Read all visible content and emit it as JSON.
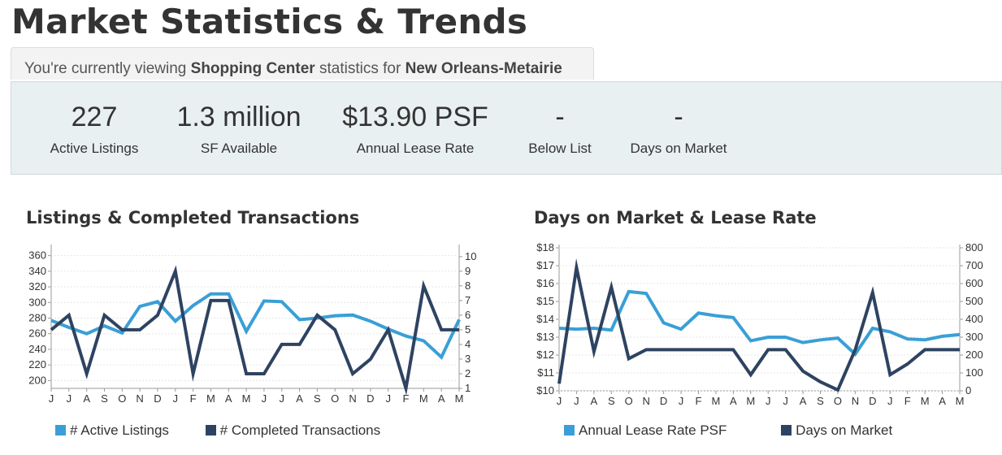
{
  "page": {
    "title": "Market Statistics & Trends",
    "viewing": {
      "prefix": "You're currently viewing ",
      "property_type": "Shopping Center",
      "middle": " statistics for ",
      "location": "New Orleans-Metairie"
    }
  },
  "stats": [
    {
      "value": "227",
      "label": "Active Listings"
    },
    {
      "value": "1.3 million",
      "label": "SF Available"
    },
    {
      "value": "$13.90 PSF",
      "label": "Annual Lease Rate"
    },
    {
      "value": "-",
      "label": "Below List"
    },
    {
      "value": "-",
      "label": "Days on Market"
    }
  ],
  "chart_data": [
    {
      "type": "line",
      "title": "Listings & Completed Transactions",
      "categories": [
        "J",
        "J",
        "A",
        "S",
        "O",
        "N",
        "D",
        "J",
        "F",
        "M",
        "A",
        "M",
        "J",
        "J",
        "A",
        "S",
        "O",
        "N",
        "D",
        "J",
        "F",
        "M",
        "A",
        "M"
      ],
      "left_axis": {
        "ticks": [
          "200",
          "220",
          "240",
          "260",
          "280",
          "300",
          "320",
          "340",
          "360"
        ],
        "range": [
          190,
          370
        ]
      },
      "right_axis": {
        "ticks": [
          "1",
          "2",
          "3",
          "4",
          "5",
          "6",
          "7",
          "8",
          "9",
          "10"
        ],
        "range": [
          1,
          10.6
        ]
      },
      "grid": true,
      "legend_position": "bottom",
      "series": [
        {
          "name": "# Active Listings",
          "axis": "left",
          "color": "#3a9fd6",
          "values": [
            277,
            268,
            260,
            270,
            261,
            295,
            301,
            276,
            296,
            311,
            311,
            263,
            302,
            301,
            278,
            280,
            283,
            284,
            276,
            266,
            257,
            251,
            230,
            278
          ]
        },
        {
          "name": "# Completed Transactions",
          "axis": "right",
          "color": "#2e4361",
          "values": [
            5,
            6,
            2,
            6,
            5,
            5,
            6,
            9,
            2,
            7,
            7,
            2,
            2,
            4,
            4,
            6,
            5,
            2,
            3,
            5,
            1,
            8,
            5,
            5
          ]
        }
      ]
    },
    {
      "type": "line",
      "title": "Days on Market & Lease Rate",
      "categories": [
        "J",
        "J",
        "A",
        "S",
        "O",
        "N",
        "D",
        "J",
        "F",
        "M",
        "A",
        "M",
        "J",
        "J",
        "A",
        "S",
        "O",
        "N",
        "D",
        "J",
        "F",
        "M",
        "A",
        "M"
      ],
      "left_axis": {
        "ticks": [
          "$10",
          "$11",
          "$12",
          "$13",
          "$14",
          "$15",
          "$16",
          "$17",
          "$18"
        ],
        "range": [
          10,
          18
        ]
      },
      "right_axis": {
        "ticks": [
          "0",
          "100",
          "200",
          "300",
          "400",
          "500",
          "600",
          "700",
          "800"
        ],
        "range": [
          0,
          800
        ]
      },
      "grid": true,
      "legend_position": "bottom",
      "series": [
        {
          "name": "Annual Lease Rate PSF",
          "axis": "left",
          "color": "#3a9fd6",
          "values": [
            13.5,
            13.45,
            13.5,
            13.4,
            15.55,
            15.45,
            13.8,
            13.45,
            14.35,
            14.2,
            14.1,
            12.8,
            13.0,
            13.0,
            12.7,
            12.85,
            12.95,
            12.05,
            13.5,
            13.3,
            12.9,
            12.85,
            13.05,
            13.15
          ]
        },
        {
          "name": "Days on Market",
          "axis": "right",
          "color": "#2e4361",
          "values": [
            40,
            690,
            220,
            580,
            180,
            230,
            230,
            230,
            230,
            230,
            230,
            90,
            230,
            230,
            110,
            50,
            5,
            230,
            550,
            90,
            150,
            230,
            230,
            230
          ]
        }
      ]
    }
  ]
}
